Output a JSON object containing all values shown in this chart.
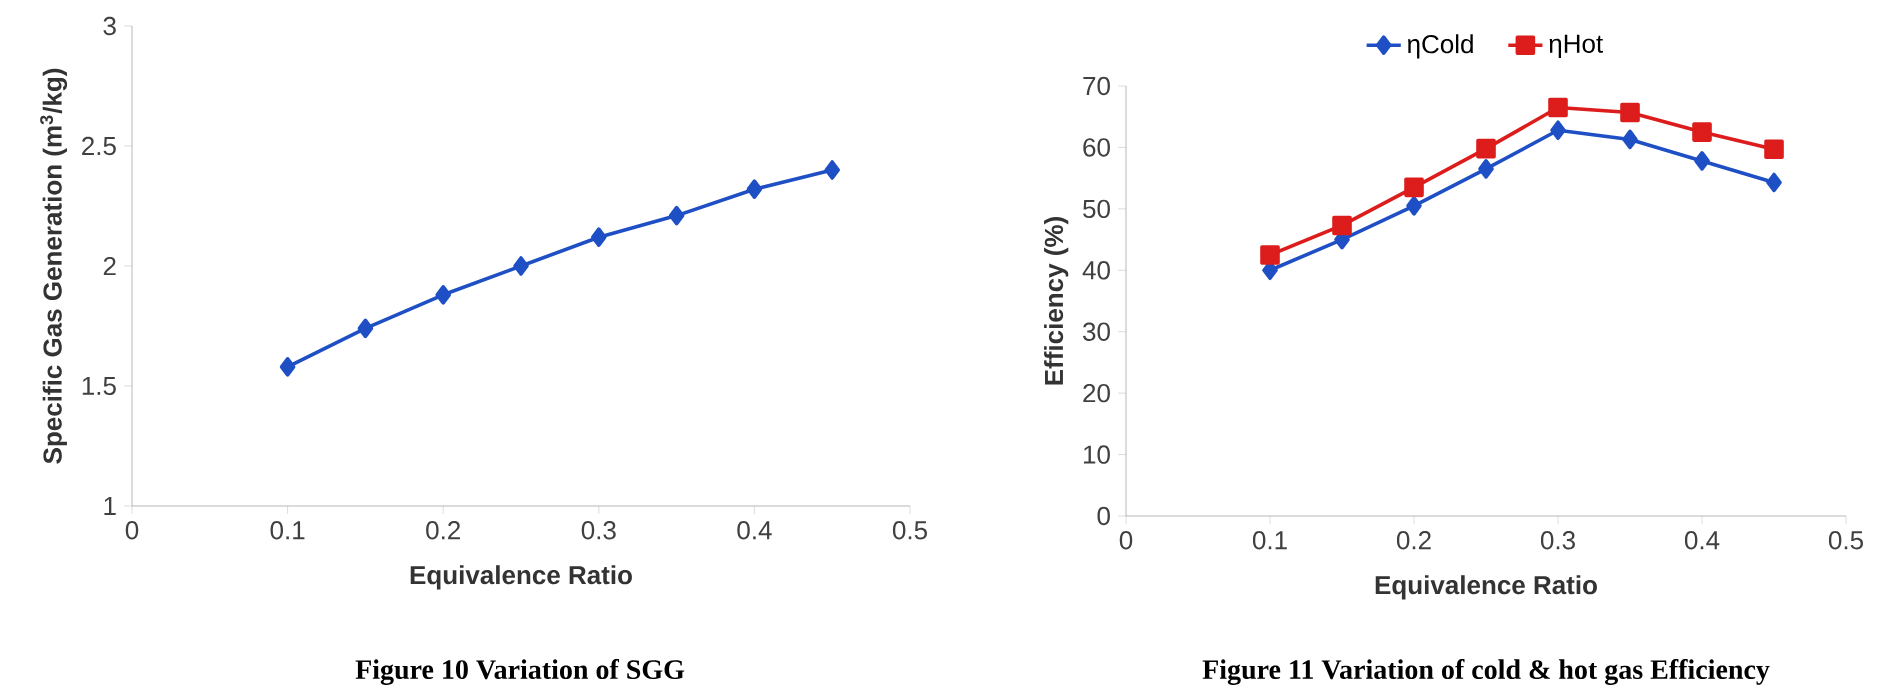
{
  "chart_data": [
    {
      "type": "line",
      "xlabel": "Equivalence Ratio",
      "ylabel": "Specific Gas Generation (m$^{3}$/kg)",
      "annotations": [
        "Figure 10  Variation of SGG"
      ],
      "xlim": [
        0,
        0.5
      ],
      "xticks": [
        0,
        0.1,
        0.2,
        0.3,
        0.4,
        0.5
      ],
      "ylim": [
        1,
        3
      ],
      "yticks": [
        1,
        1.5,
        2,
        2.5,
        3
      ],
      "grid": false,
      "legend": false,
      "marker": "diamond",
      "line_style": "solid",
      "x": [
        0.1,
        0.15,
        0.2,
        0.25,
        0.3,
        0.35,
        0.4,
        0.45
      ],
      "series": [
        {
          "color": "#1f4fc4",
          "values": [
            1.58,
            1.74,
            1.88,
            2.0,
            2.12,
            2.21,
            2.32,
            2.4
          ]
        }
      ]
    },
    {
      "type": "line",
      "xlabel": "Equivalence Ratio",
      "ylabel": "Efficiency (%)",
      "annotations": [
        "Figure 11 Variation of cold & hot gas Efficiency"
      ],
      "xlim": [
        0,
        0.5
      ],
      "xticks": [
        0,
        0.1,
        0.2,
        0.3,
        0.4,
        0.5
      ],
      "ylim": [
        0,
        70
      ],
      "yticks": [
        0,
        10,
        20,
        30,
        40,
        50,
        60,
        70
      ],
      "grid": false,
      "legend": "top",
      "line_style": "solid",
      "x": [
        0.1,
        0.15,
        0.2,
        0.25,
        0.3,
        0.35,
        0.4,
        0.45
      ],
      "series": [
        {
          "name": "ηCold",
          "color": "#1f4fc4",
          "marker": "diamond",
          "values": [
            40,
            45,
            50.5,
            56.5,
            62.8,
            61.3,
            57.8,
            54.3
          ]
        },
        {
          "name": "ηHot",
          "color": "#dd1c1c",
          "marker": "square",
          "values": [
            42.5,
            47.3,
            53.5,
            59.8,
            66.5,
            65.7,
            62.5,
            59.7
          ]
        }
      ]
    }
  ]
}
